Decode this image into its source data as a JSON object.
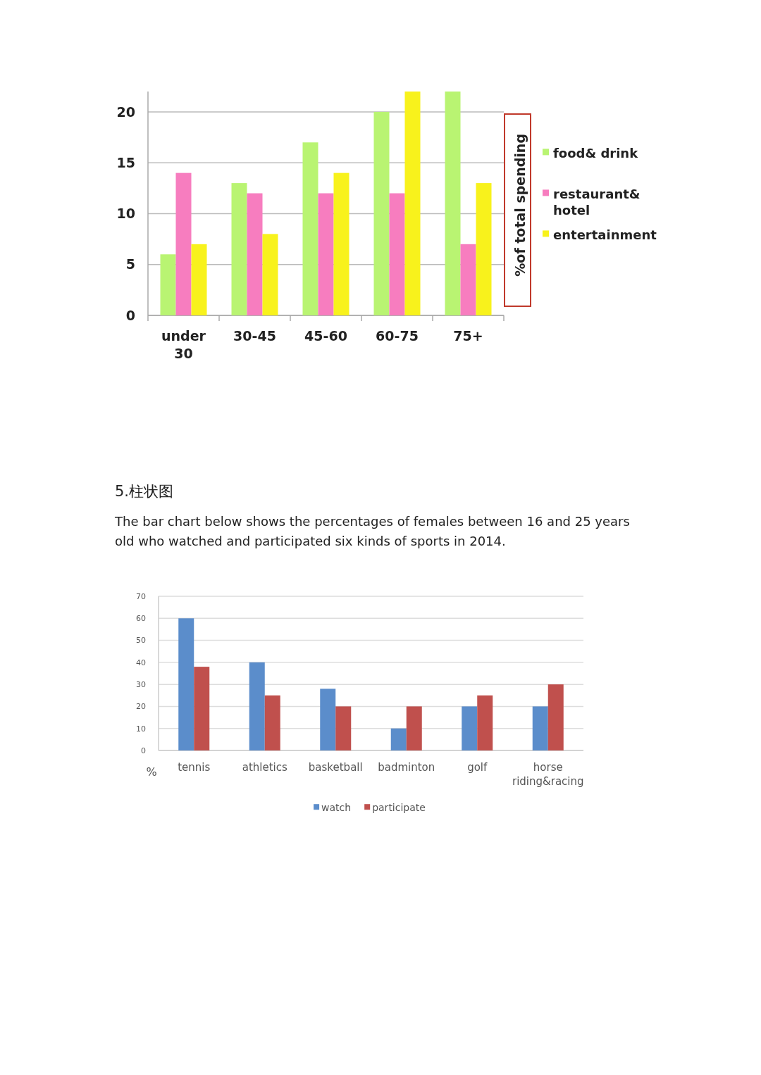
{
  "chart_data": [
    {
      "type": "bar",
      "categories": [
        "under 30",
        "30-45",
        "45-60",
        "60-75",
        "75+"
      ],
      "series": [
        {
          "name": "food& drink",
          "color": "#b9f472",
          "values": [
            6,
            13,
            17,
            20,
            22
          ]
        },
        {
          "name": "restaurant& hotel",
          "color": "#f77dbf",
          "values": [
            14,
            12,
            12,
            12,
            7
          ]
        },
        {
          "name": "entertainment",
          "color": "#f8f21c",
          "values": [
            7,
            8,
            14,
            22,
            13
          ]
        }
      ],
      "ylabel": "%of total spending",
      "ylim": [
        0,
        22
      ],
      "yticks": [
        0,
        5,
        10,
        15,
        20
      ],
      "grid": "y",
      "legend": "right"
    },
    {
      "type": "bar",
      "title": "5.柱状图",
      "subtitle": "The bar chart below shows the percentages of females between 16 and 25 years old who watched and participated six kinds of sports in 2014.",
      "categories": [
        "tennis",
        "athletics",
        "basketball",
        "badminton",
        "golf",
        "horse riding&racing"
      ],
      "series": [
        {
          "name": "watch",
          "color": "#5b8dcb",
          "values": [
            60,
            40,
            28,
            10,
            20,
            20
          ]
        },
        {
          "name": "participate",
          "color": "#c0504d",
          "values": [
            38,
            25,
            20,
            20,
            25,
            30
          ]
        }
      ],
      "ylabel": "%",
      "ylim": [
        0,
        70
      ],
      "yticks": [
        0,
        10,
        20,
        30,
        40,
        50,
        60,
        70
      ],
      "grid": "y",
      "legend": "bottom"
    }
  ]
}
